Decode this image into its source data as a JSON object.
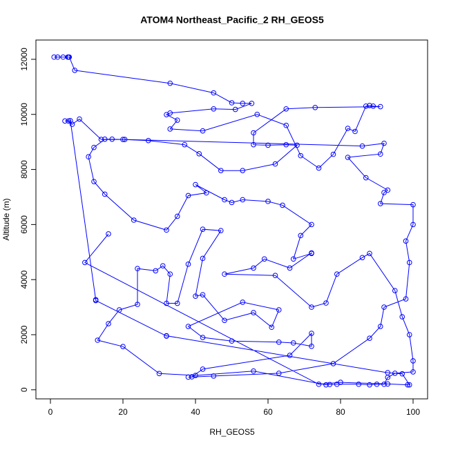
{
  "chart_data": {
    "type": "line",
    "title": "ATOM4 Northeast_Pacific_2 RH_GEOS5",
    "xlabel": "RH_GEOS5",
    "ylabel": "Altitude (m)",
    "color": "#0000ff",
    "marker": "open-circle",
    "x": [
      1,
      2,
      3.5,
      4.8,
      5,
      5.2,
      6.7,
      33,
      45,
      50,
      53,
      55.5,
      51,
      45,
      33,
      32,
      35,
      33,
      42,
      57,
      65,
      69,
      74,
      78,
      82,
      84,
      87,
      88,
      89,
      91,
      73,
      65,
      56,
      56,
      60,
      65,
      68,
      62,
      53,
      47,
      41,
      37,
      27,
      20,
      17,
      15,
      12,
      10.5,
      12,
      15,
      23,
      32,
      35,
      38,
      43,
      40,
      48,
      50,
      53,
      60,
      64,
      72,
      69,
      67,
      72,
      72,
      66,
      59,
      56,
      48,
      62,
      72,
      76,
      79,
      86,
      88,
      95,
      97,
      99,
      100,
      100,
      95,
      93,
      92,
      90,
      88,
      85,
      79,
      77,
      76,
      56,
      40,
      30,
      20,
      13,
      16,
      19,
      24,
      24,
      29,
      31,
      33,
      32,
      35,
      38,
      42,
      47,
      42,
      40,
      42,
      48,
      56,
      61,
      63,
      53,
      38,
      42,
      50,
      63,
      67,
      72,
      72,
      66,
      42,
      39,
      38,
      45,
      63,
      78,
      88,
      91,
      92,
      98,
      99,
      98,
      100,
      100,
      91,
      92,
      93,
      87,
      82,
      91,
      92,
      86,
      20.5,
      14,
      8,
      6,
      5,
      4,
      5.5,
      12.5,
      12.5,
      32,
      32,
      93,
      97,
      99,
      98.5,
      93,
      80,
      74,
      9.5,
      16
    ],
    "values": [
      12080,
      12080,
      12080,
      12080,
      12080,
      12080,
      11600,
      11130,
      10780,
      10420,
      10400,
      10400,
      10180,
      10200,
      10050,
      9990,
      9790,
      9470,
      9400,
      10000,
      9600,
      8500,
      8050,
      8550,
      9490,
      9380,
      10300,
      10320,
      10300,
      10280,
      10250,
      10200,
      9330,
      8900,
      8880,
      8900,
      8880,
      8200,
      7960,
      7960,
      8570,
      8900,
      9050,
      9090,
      9100,
      9100,
      8800,
      8460,
      7560,
      7100,
      6160,
      5800,
      6300,
      7050,
      7150,
      7450,
      6900,
      6800,
      6900,
      6840,
      6700,
      6000,
      5600,
      4750,
      4950,
      4970,
      4420,
      4750,
      4420,
      4200,
      4150,
      3000,
      3150,
      4200,
      4800,
      4950,
      3600,
      2650,
      2000,
      1050,
      650,
      600,
      450,
      200,
      200,
      180,
      200,
      200,
      190,
      180,
      680,
      520,
      590,
      1570,
      1800,
      2400,
      2900,
      3100,
      4400,
      4320,
      4500,
      4200,
      3140,
      3140,
      4560,
      5830,
      5780,
      4770,
      3400,
      3450,
      2520,
      2800,
      2270,
      2900,
      3180,
      2300,
      1900,
      1770,
      1730,
      1700,
      1580,
      2050,
      1250,
      750,
      470,
      460,
      500,
      600,
      950,
      1870,
      2300,
      3000,
      3300,
      4620,
      5400,
      6000,
      6720,
      6760,
      7160,
      7250,
      7700,
      8440,
      8560,
      8950,
      8850,
      9090,
      9090,
      9830,
      9640,
      9760,
      9760,
      9770,
      3270,
      3240,
      1950,
      1960,
      620,
      580,
      180,
      180,
      210,
      270,
      200,
      4620,
      5660
    ],
    "xlim": [
      -4,
      104
    ],
    "ylim": [
      -330,
      12700
    ],
    "xticks": [
      0,
      20,
      40,
      60,
      80,
      100
    ],
    "yticks": [
      0,
      2000,
      4000,
      6000,
      8000,
      10000,
      12000
    ]
  }
}
